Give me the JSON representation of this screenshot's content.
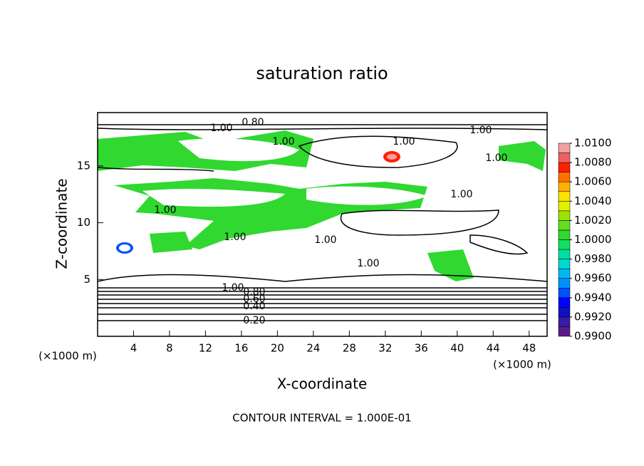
{
  "chart_data": {
    "type": "contour",
    "title": "saturation ratio",
    "x_label": "X-coordinate",
    "y_label": "Z-coordinate",
    "x_unit_label": "(×1000 m)",
    "y_unit_label": "(×1000 m)",
    "xlim": [
      0,
      50
    ],
    "xticks": [
      4,
      8,
      12,
      16,
      20,
      24,
      28,
      32,
      36,
      40,
      44,
      48
    ],
    "ylim": [
      0,
      19.7
    ],
    "yticks": [
      5,
      10,
      15
    ],
    "colorbar": {
      "lim": [
        0.99,
        1.01
      ],
      "ticks": [
        {
          "value": 0.99,
          "label": "0.9900"
        },
        {
          "value": 0.992,
          "label": "0.9920"
        },
        {
          "value": 0.994,
          "label": "0.9940"
        },
        {
          "value": 0.996,
          "label": "0.9960"
        },
        {
          "value": 0.998,
          "label": "0.9980"
        },
        {
          "value": 1.0,
          "label": "1.0000"
        },
        {
          "value": 1.002,
          "label": "1.0020"
        },
        {
          "value": 1.004,
          "label": "1.0040"
        },
        {
          "value": 1.006,
          "label": "1.0060"
        },
        {
          "value": 1.008,
          "label": "1.0080"
        },
        {
          "value": 1.01,
          "label": "1.0100"
        }
      ],
      "colors": [
        "#5b1a8c",
        "#3a1aa8",
        "#1010c0",
        "#0000ff",
        "#0050ff",
        "#0090ff",
        "#00b8f0",
        "#00d8d0",
        "#00e0a0",
        "#10e060",
        "#30d830",
        "#60e020",
        "#a0e000",
        "#e0f000",
        "#ffe000",
        "#ffb000",
        "#ff7000",
        "#ff2000",
        "#f06060",
        "#f0a0a0"
      ]
    },
    "contour_labels": [
      {
        "value": 1.0,
        "label": "1.00"
      },
      {
        "value": 0.8,
        "label": "0.80"
      },
      {
        "value": 1.0,
        "label": "1.00"
      },
      {
        "value": 1.0,
        "label": "1.00"
      },
      {
        "value": 1.0,
        "label": "1.00"
      },
      {
        "value": 1.0,
        "label": "1.00"
      },
      {
        "value": 1.0,
        "label": "1.00"
      },
      {
        "value": 1.0,
        "label": "1.00"
      },
      {
        "value": 1.0,
        "label": "1.00"
      },
      {
        "value": 1.0,
        "label": "1.00"
      },
      {
        "value": 1.0,
        "label": "1.00"
      },
      {
        "value": 1.0,
        "label": "1.00"
      },
      {
        "value": 0.8,
        "label": "0.80"
      },
      {
        "value": 0.6,
        "label": "0.60"
      },
      {
        "value": 0.4,
        "label": "0.40"
      },
      {
        "value": 0.2,
        "label": "0.20"
      }
    ],
    "note": "CONTOUR INTERVAL = 1.000E-01"
  }
}
